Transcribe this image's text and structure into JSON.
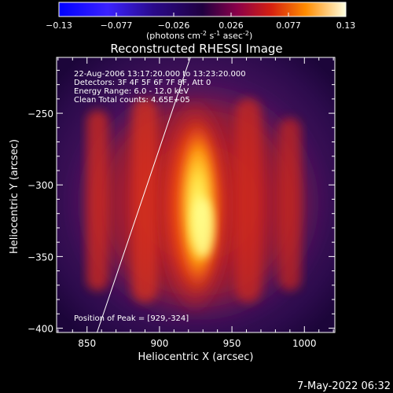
{
  "colorbar": {
    "min": -0.13,
    "max": 0.13,
    "tick_labels": [
      "-0.13",
      "-0.077",
      "-0.026",
      "0.026",
      "0.077",
      "0.13"
    ],
    "unit_main": "(photons cm",
    "unit_sup1": "-2",
    "unit_s": " s",
    "unit_sup2": "-1",
    "unit_asec": " asec",
    "unit_sup3": "-2",
    "unit_end": ")"
  },
  "chart_data": {
    "type": "heatmap",
    "title": "Reconstructed RHESSI Image",
    "xlabel": "Heliocentric X (arcsec)",
    "ylabel": "Heliocentric Y (arcsec)",
    "xlim": [
      829,
      1021
    ],
    "ylim": [
      -403,
      -211
    ],
    "xticks": [
      850,
      900,
      950,
      1000
    ],
    "yticks": [
      -250,
      -300,
      -350,
      -400
    ],
    "peak": [
      929,
      -324
    ],
    "colors": {
      "fill_low": "#5a1a6f",
      "fill_mid": "#c8281e",
      "fill_high": "#ffff66",
      "limb": "#ffffff"
    }
  },
  "annotations": {
    "time_range": "22-Aug-2006 13:17:20.000 to 13:23:20.000",
    "detectors": "Detectors: 3F 4F 5F 6F 7F 8F, Att 0",
    "energy_range": "Energy Range: 6.0 - 12.0 keV",
    "clean_counts": "Clean     Total counts: 4.65E+05",
    "peak_position": "Position of Peak = [929,-324]"
  },
  "footer": {
    "timestamp": "7-May-2022 06:32"
  }
}
